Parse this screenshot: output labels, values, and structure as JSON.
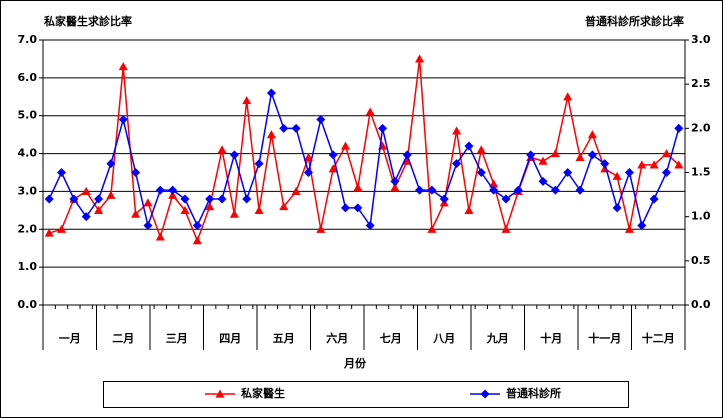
{
  "chart_data": {
    "type": "line",
    "ylabel": "私家醫生求診比率",
    "y2label": "普通科診所求診比率",
    "xlabel": "月份",
    "categories": [
      null,
      null,
      null,
      null,
      null,
      null,
      null,
      null,
      null,
      null,
      null,
      null,
      null,
      null,
      null,
      null,
      null,
      null,
      null,
      null,
      null,
      null,
      null,
      null,
      null,
      null,
      null,
      null,
      null,
      null,
      null,
      null,
      null,
      null,
      null,
      null,
      null,
      null,
      null,
      null,
      null,
      null,
      null,
      null,
      null,
      null,
      null,
      null,
      null,
      null,
      null,
      null
    ],
    "x_groups": [
      "一月",
      "二月",
      "三月",
      "四月",
      "五月",
      "六月",
      "七月",
      "八月",
      "九月",
      "十月",
      "十一月",
      "十二月"
    ],
    "ylim": [
      0,
      7
    ],
    "yticks": [
      {
        "value": 0,
        "label": "0.0"
      },
      {
        "value": 1,
        "label": "1.0"
      },
      {
        "value": 2,
        "label": "2.0"
      },
      {
        "value": 3,
        "label": "3.0"
      },
      {
        "value": 4,
        "label": "4.0"
      },
      {
        "value": 5,
        "label": "5.0"
      },
      {
        "value": 6,
        "label": "6.0"
      },
      {
        "value": 7,
        "label": "7.0"
      }
    ],
    "y2lim": [
      0,
      3
    ],
    "y2ticks": [
      {
        "value": 0,
        "label": "0.0"
      },
      {
        "value": 0.5,
        "label": "0.5"
      },
      {
        "value": 1,
        "label": "1.0"
      },
      {
        "value": 1.5,
        "label": "1.5"
      },
      {
        "value": 2,
        "label": "2.0"
      },
      {
        "value": 2.5,
        "label": "2.5"
      },
      {
        "value": 3,
        "label": "3.0"
      }
    ],
    "grid": true,
    "legend": "bottom",
    "series": [
      {
        "name": "私家醫生",
        "color": "#ff0000",
        "marker": "triangle",
        "values": [
          1.9,
          2.0,
          2.8,
          3.0,
          2.5,
          2.9,
          6.3,
          2.4,
          2.7,
          1.8,
          2.9,
          2.5,
          1.7,
          2.6,
          4.1,
          2.4,
          5.4,
          2.5,
          4.5,
          2.6,
          3.0,
          3.9,
          2.0,
          3.6,
          4.2,
          3.1,
          5.1,
          4.2,
          3.1,
          3.8,
          6.5,
          2.0,
          2.7,
          4.6,
          2.5,
          4.1,
          3.2,
          2.0,
          3.0,
          3.9,
          3.8,
          4.0,
          5.5,
          3.9,
          4.5,
          3.6,
          3.4,
          2.0,
          3.7,
          3.7,
          4.0,
          3.7
        ]
      },
      {
        "name": "普通科診所",
        "color": "#0000ff",
        "marker": "diamond",
        "axis": "y2",
        "values": [
          1.2,
          1.5,
          1.2,
          1.0,
          1.2,
          1.6,
          2.1,
          1.5,
          0.9,
          1.3,
          1.3,
          1.2,
          0.9,
          1.2,
          1.2,
          1.7,
          1.2,
          1.6,
          2.4,
          2.0,
          2.0,
          1.5,
          2.1,
          1.7,
          1.1,
          1.1,
          0.9,
          2.0,
          1.4,
          1.7,
          1.3,
          1.3,
          1.2,
          1.6,
          1.8,
          1.5,
          1.3,
          1.2,
          1.3,
          1.7,
          1.4,
          1.3,
          1.5,
          1.3,
          1.7,
          1.6,
          1.1,
          1.5,
          0.9,
          1.2,
          1.5,
          2.0
        ]
      }
    ]
  }
}
